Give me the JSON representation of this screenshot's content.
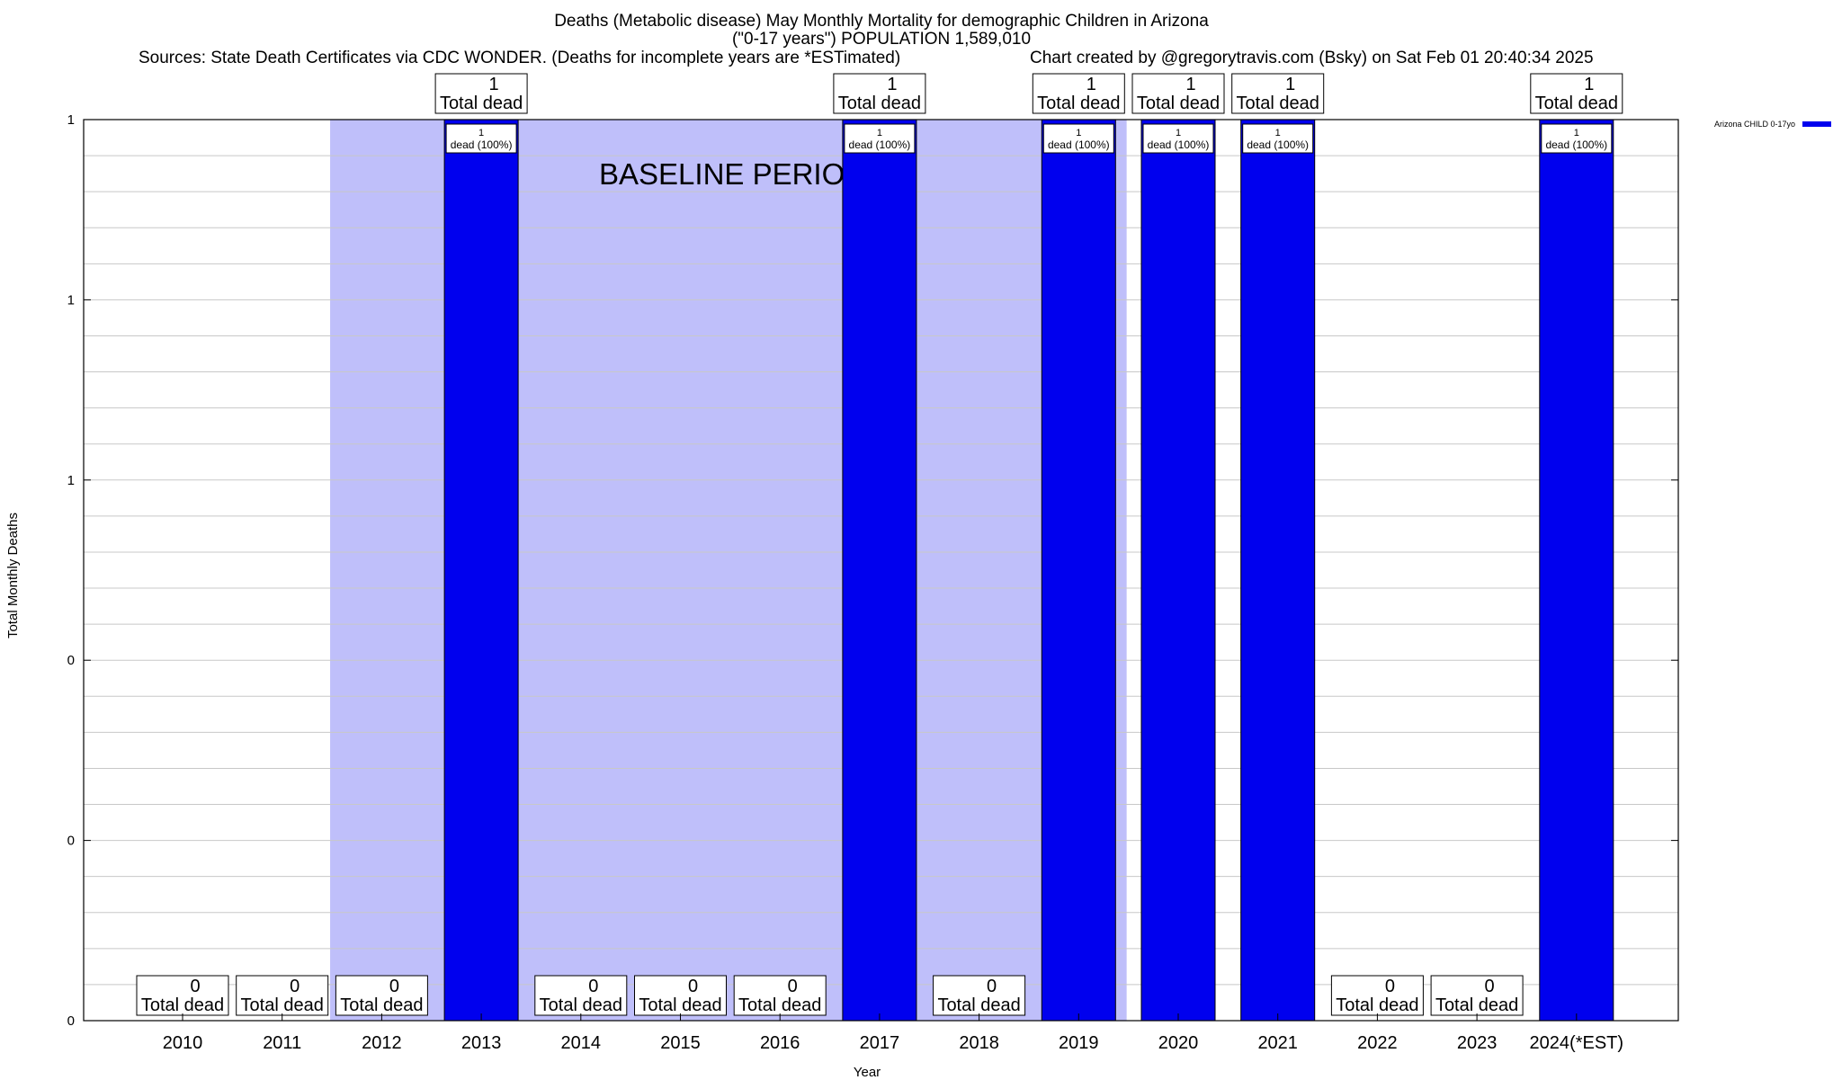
{
  "titles": {
    "line1": "Deaths (Metabolic disease) May Monthly Mortality for demographic Children in Arizona",
    "line2": "(\"0-17 years\") POPULATION 1,589,010",
    "sources": "Sources: State Death Certificates via CDC WONDER. (Deaths for incomplete years are *ESTimated)",
    "credit": "Chart created by @gregorytravis.com (Bsky) on Sat Feb 01 20:40:34 2025"
  },
  "colors": {
    "bar": "#0000ee",
    "baseline_shade": "#bfbffa",
    "grid": "#c8c8c8",
    "axis": "#000000"
  },
  "chart_data": {
    "type": "bar",
    "title": "Deaths (Metabolic disease) May Monthly Mortality for demographic Children in Arizona",
    "xlabel": "Year",
    "ylabel": "Total Monthly Deaths",
    "ylim": [
      0,
      1
    ],
    "yticks": [
      "0",
      "0",
      "0",
      "1",
      "1",
      "1"
    ],
    "grid": true,
    "legend_position": "top-right",
    "categories": [
      "2010",
      "2011",
      "2012",
      "2013",
      "2014",
      "2015",
      "2016",
      "2017",
      "2018",
      "2019",
      "2020",
      "2021",
      "2022",
      "2023",
      "2024(*EST)"
    ],
    "series": [
      {
        "name": "Arizona CHILD 0-17yo",
        "values": [
          0,
          0,
          0,
          1,
          0,
          0,
          0,
          1,
          0,
          1,
          1,
          1,
          0,
          0,
          1
        ]
      }
    ],
    "total_label_value": [
      "0",
      "0",
      "0",
      "1",
      "0",
      "0",
      "0",
      "1",
      "0",
      "1",
      "1",
      "1",
      "0",
      "0",
      "1"
    ],
    "total_label_text": "Total dead",
    "bar_label_line1": [
      "1",
      "1",
      "1",
      "1",
      "1",
      "1"
    ],
    "bar_label_line2": "dead (100%)",
    "baseline_label": "BASELINE PERIOD",
    "baseline_period": {
      "from": "2012",
      "to": "2019"
    }
  }
}
